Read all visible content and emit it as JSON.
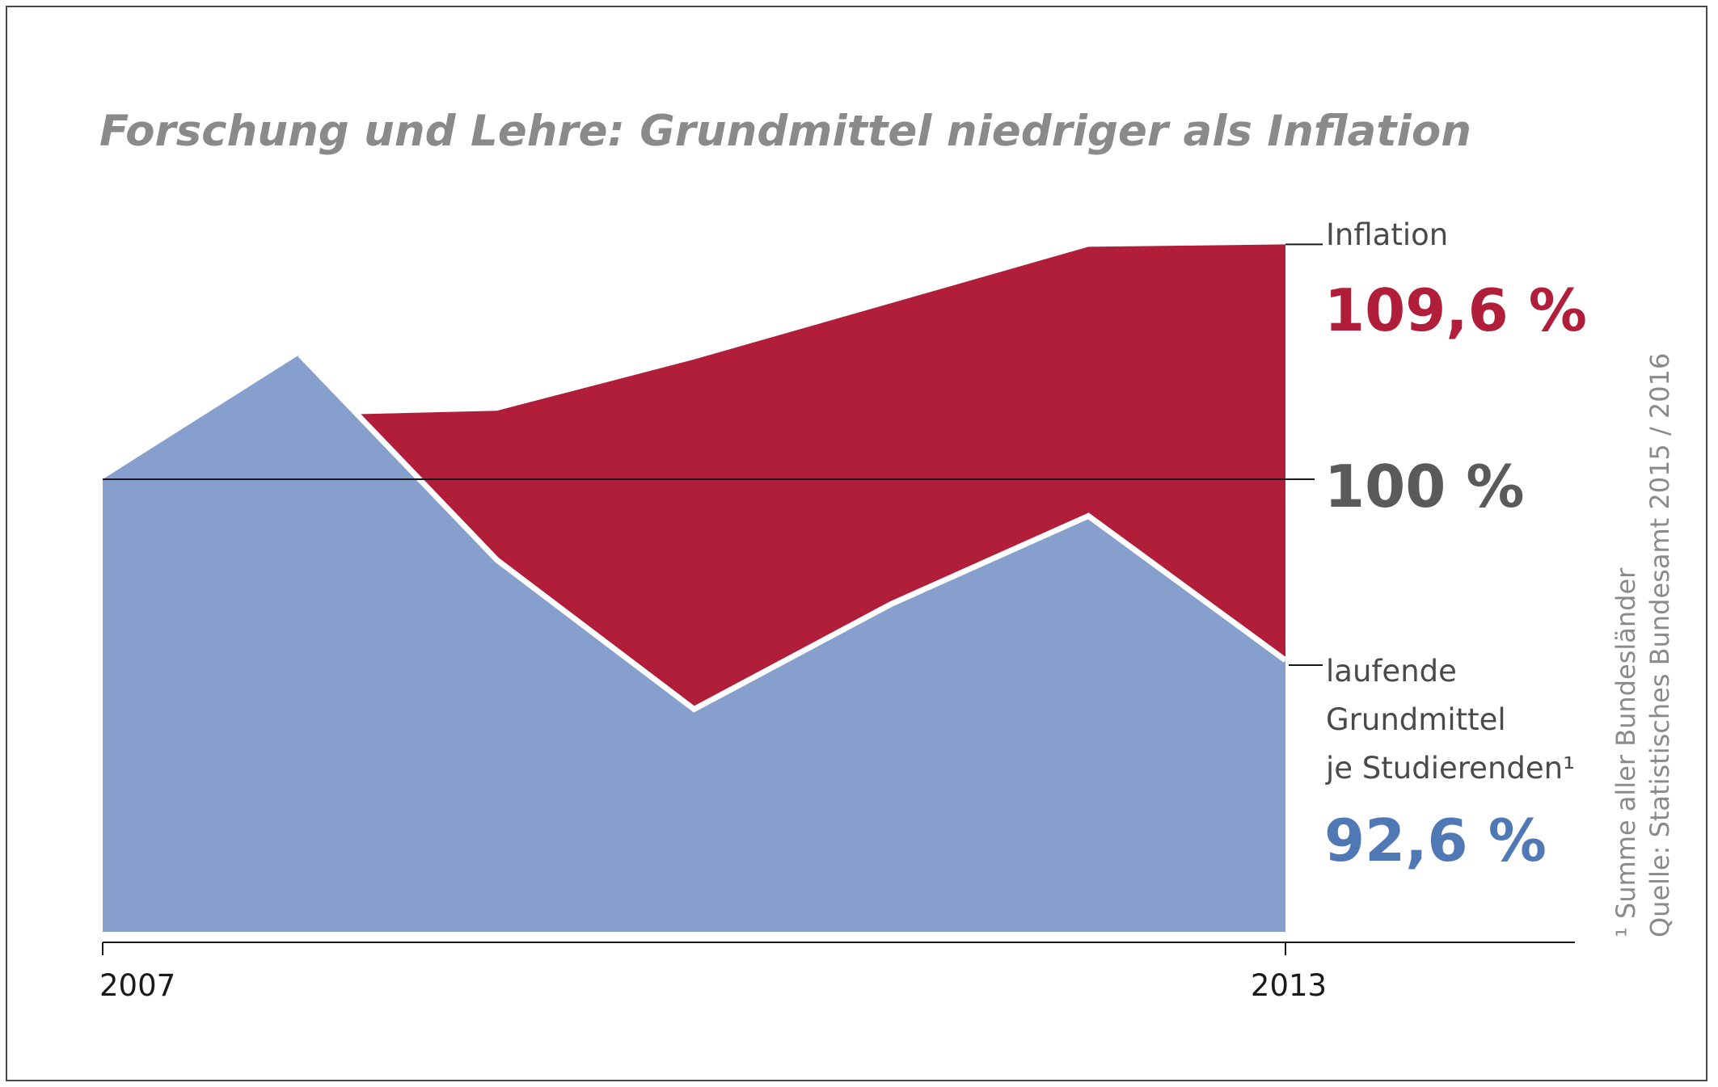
{
  "title": "Forschung und Lehre: Grundmittel niedriger als Inflation",
  "labels": {
    "inflation": "Inflation",
    "inflation_value": "109,6 %",
    "baseline_value": "100 %",
    "funds_line1": "laufende",
    "funds_line2": "Grundmittel",
    "funds_line3": "je Studierenden¹",
    "funds_value": "92,6 %"
  },
  "footnote": {
    "line1": "¹ Summe aller Bundesländer",
    "line2": "Quelle: Statistisches Bundesamt 2015 / 2016"
  },
  "colors": {
    "inflation": "#b11e3a",
    "funds": "#879fcc",
    "funds_label": "#4f78b5",
    "baseline_label": "#5a5a5a"
  },
  "chart_data": {
    "type": "area",
    "x": [
      2007,
      2008,
      2009,
      2010,
      2011,
      2012,
      2013
    ],
    "x_tick_labels": [
      "2007",
      "2013"
    ],
    "baseline": 100,
    "ylim": [
      81.5,
      115
    ],
    "series": [
      {
        "name": "Inflation",
        "values": [
          100,
          102.6,
          102.8,
          104.9,
          107.2,
          109.5,
          109.6
        ]
      },
      {
        "name": "laufende Grundmittel je Studierenden¹",
        "values": [
          100,
          105.1,
          96.7,
          90.6,
          94.9,
          98.5,
          92.6
        ]
      }
    ]
  }
}
